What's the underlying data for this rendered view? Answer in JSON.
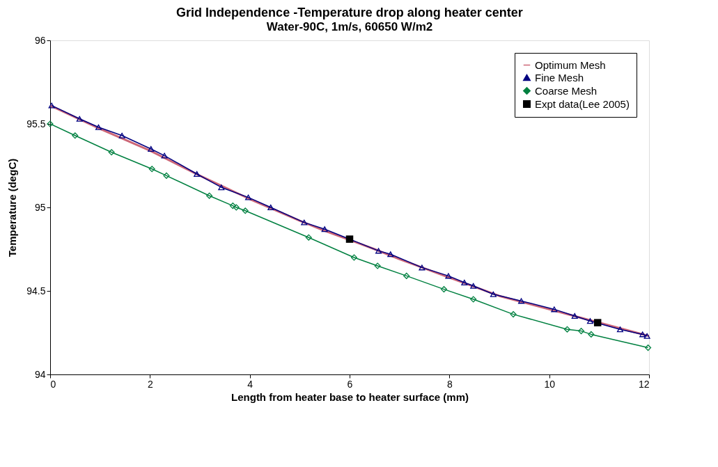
{
  "chart_data": {
    "type": "line",
    "title": "Grid Independence -Temperature drop along heater center",
    "subtitle": "Water-90C, 1m/s, 60650 W/m2",
    "xlabel": "Length from heater base to heater surface (mm)",
    "ylabel": "Temperature (degC)",
    "xlim": [
      0,
      12
    ],
    "xticks": [
      0,
      2,
      4,
      6,
      8,
      10,
      12
    ],
    "ylim": [
      94,
      96
    ],
    "yticks": [
      94,
      94.5,
      95,
      95.5,
      96
    ],
    "grid": false,
    "legend": "top right",
    "series": [
      {
        "name": "Optimum Mesh",
        "marker": "none",
        "color": "#cc6677",
        "x": [
          0,
          1,
          2,
          3,
          4,
          5,
          5.5,
          6.5,
          7,
          8,
          9,
          10,
          10.5,
          11.5,
          12
        ],
        "values": [
          95.61,
          95.47,
          95.34,
          95.19,
          95.05,
          94.92,
          94.86,
          94.75,
          94.69,
          94.58,
          94.47,
          94.39,
          94.35,
          94.27,
          94.23
        ]
      },
      {
        "name": "Fine Mesh",
        "marker": "triangle",
        "color": "#000080",
        "x": [
          0.03,
          0.59,
          0.97,
          1.44,
          2.02,
          2.29,
          2.94,
          3.43,
          3.97,
          4.42,
          5.09,
          5.5,
          6.58,
          6.82,
          7.45,
          7.98,
          8.3,
          8.48,
          8.88,
          9.44,
          10.1,
          10.51,
          10.82,
          11.42,
          11.87,
          11.96
        ],
        "values": [
          95.61,
          95.53,
          95.48,
          95.43,
          95.35,
          95.31,
          95.2,
          95.12,
          95.06,
          95.0,
          94.91,
          94.87,
          94.74,
          94.72,
          94.64,
          94.59,
          94.55,
          94.53,
          94.48,
          94.44,
          94.39,
          94.35,
          94.32,
          94.27,
          94.24,
          94.23
        ]
      },
      {
        "name": "Coarse Mesh",
        "marker": "diamond",
        "color": "#008040",
        "x": [
          0,
          0.5,
          1.23,
          2.04,
          2.33,
          3.19,
          3.66,
          3.73,
          3.91,
          5.18,
          6.09,
          6.56,
          7.14,
          7.89,
          8.48,
          9.28,
          10.36,
          10.64,
          10.84,
          11.98
        ],
        "values": [
          95.5,
          95.43,
          95.33,
          95.23,
          95.19,
          95.07,
          95.01,
          95.0,
          94.98,
          94.82,
          94.7,
          94.65,
          94.59,
          94.51,
          94.45,
          94.36,
          94.27,
          94.26,
          94.24,
          94.16
        ]
      },
      {
        "name": "Expt data(Lee 2005)",
        "type": "scatter",
        "marker": "square",
        "color": "#000000",
        "x": [
          6.0,
          10.97
        ],
        "values": [
          94.81,
          94.31
        ]
      }
    ]
  }
}
